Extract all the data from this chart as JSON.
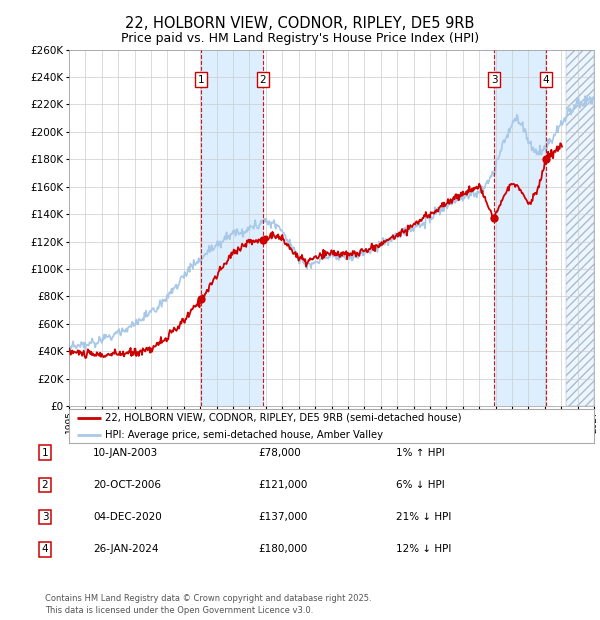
{
  "title": "22, HOLBORN VIEW, CODNOR, RIPLEY, DE5 9RB",
  "subtitle": "Price paid vs. HM Land Registry's House Price Index (HPI)",
  "legend_line1": "22, HOLBORN VIEW, CODNOR, RIPLEY, DE5 9RB (semi-detached house)",
  "legend_line2": "HPI: Average price, semi-detached house, Amber Valley",
  "footer": "Contains HM Land Registry data © Crown copyright and database right 2025.\nThis data is licensed under the Open Government Licence v3.0.",
  "transactions": [
    {
      "num": 1,
      "date": "10-JAN-2003",
      "price": "£78,000",
      "hpi": "1% ↑ HPI",
      "year": 2003.04
    },
    {
      "num": 2,
      "date": "20-OCT-2006",
      "price": "£121,000",
      "hpi": "6% ↓ HPI",
      "year": 2006.8
    },
    {
      "num": 3,
      "date": "04-DEC-2020",
      "price": "£137,000",
      "hpi": "21% ↓ HPI",
      "year": 2020.92
    },
    {
      "num": 4,
      "date": "26-JAN-2024",
      "price": "£180,000",
      "hpi": "12% ↓ HPI",
      "year": 2024.07
    }
  ],
  "transaction_prices": [
    78000,
    121000,
    137000,
    180000
  ],
  "ylim": [
    0,
    260000
  ],
  "ytick_step": 20000,
  "xmin": 1995,
  "xmax": 2027,
  "background_color": "#ffffff",
  "plot_bg_color": "#ffffff",
  "grid_color": "#cccccc",
  "red_color": "#cc0000",
  "blue_color": "#a8c8e8",
  "shade_color": "#ddeeff",
  "hatch_start": 2025.3
}
